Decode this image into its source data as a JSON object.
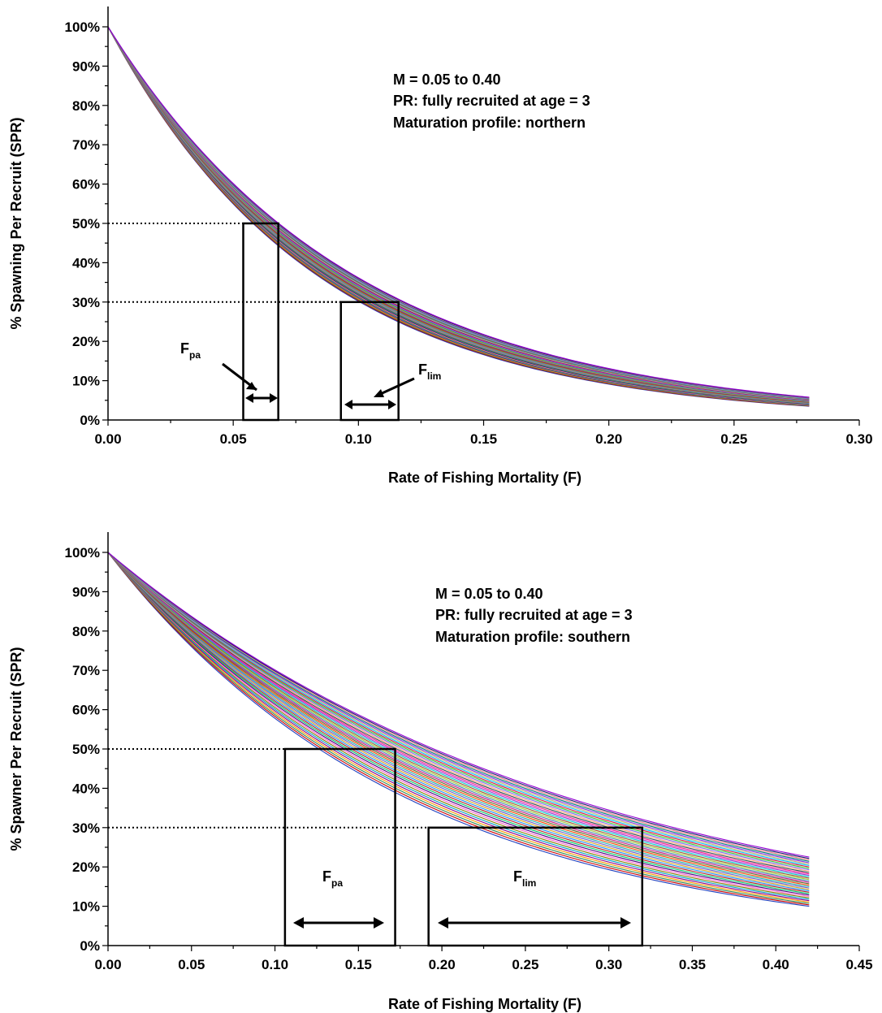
{
  "chart_data": [
    {
      "type": "line",
      "ylabel": "% Spawning Per Recruit (SPR)",
      "xlabel": "Rate of Fishing Mortality (F)",
      "xlim": [
        0,
        0.3
      ],
      "ylim": [
        0,
        1.0
      ],
      "x_ticks": [
        "0.00",
        "0.05",
        "0.10",
        "0.15",
        "0.20",
        "0.25",
        "0.30"
      ],
      "y_ticks": [
        "0%",
        "10%",
        "20%",
        "30%",
        "40%",
        "50%",
        "60%",
        "70%",
        "80%",
        "90%",
        "100%"
      ],
      "annotation_lines": [
        "M = 0.05 to 0.40",
        "PR: fully recruited at age = 3",
        "Maturation profile: northern"
      ],
      "curve_family": {
        "count": 36,
        "x_max": 0.28,
        "y_end_min": 0.035,
        "y_end_max": 0.058
      },
      "reference_lines": [
        0.5,
        0.3
      ],
      "boxes": [
        {
          "name": "F_pa",
          "f_min": 0.054,
          "f_max": 0.068,
          "spr": 0.5
        },
        {
          "name": "F_lim",
          "f_min": 0.093,
          "f_max": 0.116,
          "spr": 0.3
        }
      ],
      "labels": [
        {
          "main": "F",
          "sub": "pa"
        },
        {
          "main": "F",
          "sub": "lim"
        }
      ]
    },
    {
      "type": "line",
      "ylabel": "% Spawner Per Recruit (SPR)",
      "xlabel": "Rate of Fishing Mortality (F)",
      "xlim": [
        0,
        0.45
      ],
      "ylim": [
        0,
        1.0
      ],
      "x_ticks": [
        "0.00",
        "0.05",
        "0.10",
        "0.15",
        "0.20",
        "0.25",
        "0.30",
        "0.35",
        "0.40",
        "0.45"
      ],
      "y_ticks": [
        "0%",
        "10%",
        "20%",
        "30%",
        "40%",
        "50%",
        "60%",
        "70%",
        "80%",
        "90%",
        "100%"
      ],
      "annotation_lines": [
        "M = 0.05 to 0.40",
        "PR: fully recruited at age = 3",
        "Maturation profile: southern"
      ],
      "curve_family": {
        "count": 36,
        "x_max": 0.42,
        "y_end_min": 0.1,
        "y_end_max": 0.225
      },
      "reference_lines": [
        0.5,
        0.3
      ],
      "boxes": [
        {
          "name": "F_pa",
          "f_min": 0.106,
          "f_max": 0.172,
          "spr": 0.5
        },
        {
          "name": "F_lim",
          "f_min": 0.192,
          "f_max": 0.32,
          "spr": 0.3
        }
      ],
      "labels": [
        {
          "main": "F",
          "sub": "pa"
        },
        {
          "main": "F",
          "sub": "lim"
        }
      ]
    }
  ],
  "colors": {
    "axis": "#000000",
    "curves": [
      "#1f3fbf",
      "#cc0000",
      "#2e8b57",
      "#ff9900",
      "#8b008b",
      "#00a0c8",
      "#808000",
      "#ff66cc",
      "#4b0082",
      "#00cc66",
      "#b22222",
      "#1e90ff",
      "#daa520",
      "#6a5acd",
      "#20b2aa",
      "#ff4500",
      "#556b2f",
      "#c71585",
      "#4682b4",
      "#9acd32",
      "#a0522d",
      "#00ced1",
      "#9932cc",
      "#ff1493",
      "#2f4f4f",
      "#ffa07a",
      "#7b68ee",
      "#32cd32",
      "#dc143c",
      "#00bfff",
      "#bdb76b",
      "#8a2be2",
      "#008080",
      "#f08080",
      "#191970",
      "#9400d3"
    ]
  }
}
